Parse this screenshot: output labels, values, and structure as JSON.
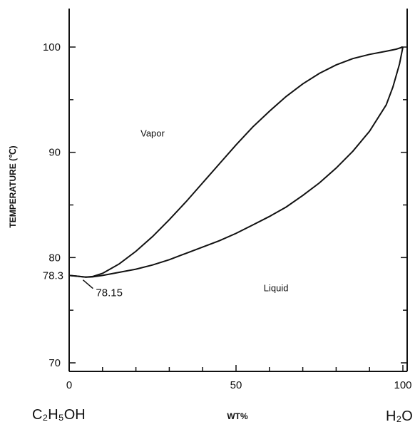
{
  "chart_data": {
    "type": "line",
    "title": "",
    "xlabel": "WT%",
    "ylabel": "TEMPERATURE (℃)",
    "xlim": [
      0,
      100
    ],
    "ylim": [
      69,
      103
    ],
    "x_ticks": [
      0,
      50,
      100
    ],
    "y_ticks": [
      70,
      80,
      90,
      100
    ],
    "x_tick_labels": [
      "0",
      "50",
      "100"
    ],
    "y_tick_labels": [
      "70",
      "80",
      "90",
      "100"
    ],
    "x_minor_ticks": [
      10,
      20,
      30,
      40,
      60,
      70,
      80,
      90
    ],
    "y_minor_ticks": [
      75,
      85,
      95
    ],
    "left_end_label": "C₂H₅OH",
    "right_end_label": "H₂O",
    "left_value_label": "78.3",
    "grid": false,
    "series": [
      {
        "x": [
          0,
          2,
          4,
          5,
          7,
          10,
          15,
          20,
          25,
          30,
          35,
          40,
          45,
          50,
          55,
          60,
          65,
          70,
          75,
          80,
          85,
          90,
          95,
          98,
          100
        ],
        "y": [
          78.3,
          78.25,
          78.18,
          78.15,
          78.2,
          78.5,
          79.4,
          80.6,
          82.0,
          83.6,
          85.3,
          87.1,
          88.9,
          90.7,
          92.4,
          93.9,
          95.3,
          96.5,
          97.5,
          98.3,
          98.9,
          99.3,
          99.6,
          99.8,
          100.0
        ]
      },
      {
        "x": [
          0,
          2,
          4,
          5,
          7,
          10,
          15,
          20,
          25,
          30,
          35,
          40,
          45,
          50,
          55,
          60,
          65,
          70,
          75,
          80,
          85,
          90,
          95,
          97,
          99,
          100
        ],
        "y": [
          78.3,
          78.25,
          78.18,
          78.15,
          78.17,
          78.3,
          78.6,
          78.9,
          79.3,
          79.8,
          80.4,
          81.0,
          81.6,
          82.3,
          83.1,
          83.9,
          84.8,
          85.9,
          87.1,
          88.5,
          90.1,
          92.0,
          94.5,
          96.2,
          98.4,
          100.0
        ]
      }
    ],
    "annotations": [
      {
        "text": "Vapor",
        "x": 25,
        "y": 91.5
      },
      {
        "text": "Liquid",
        "x": 62,
        "y": 76.8
      },
      {
        "text": "78.15",
        "x": 5,
        "y": 78.15
      }
    ]
  }
}
